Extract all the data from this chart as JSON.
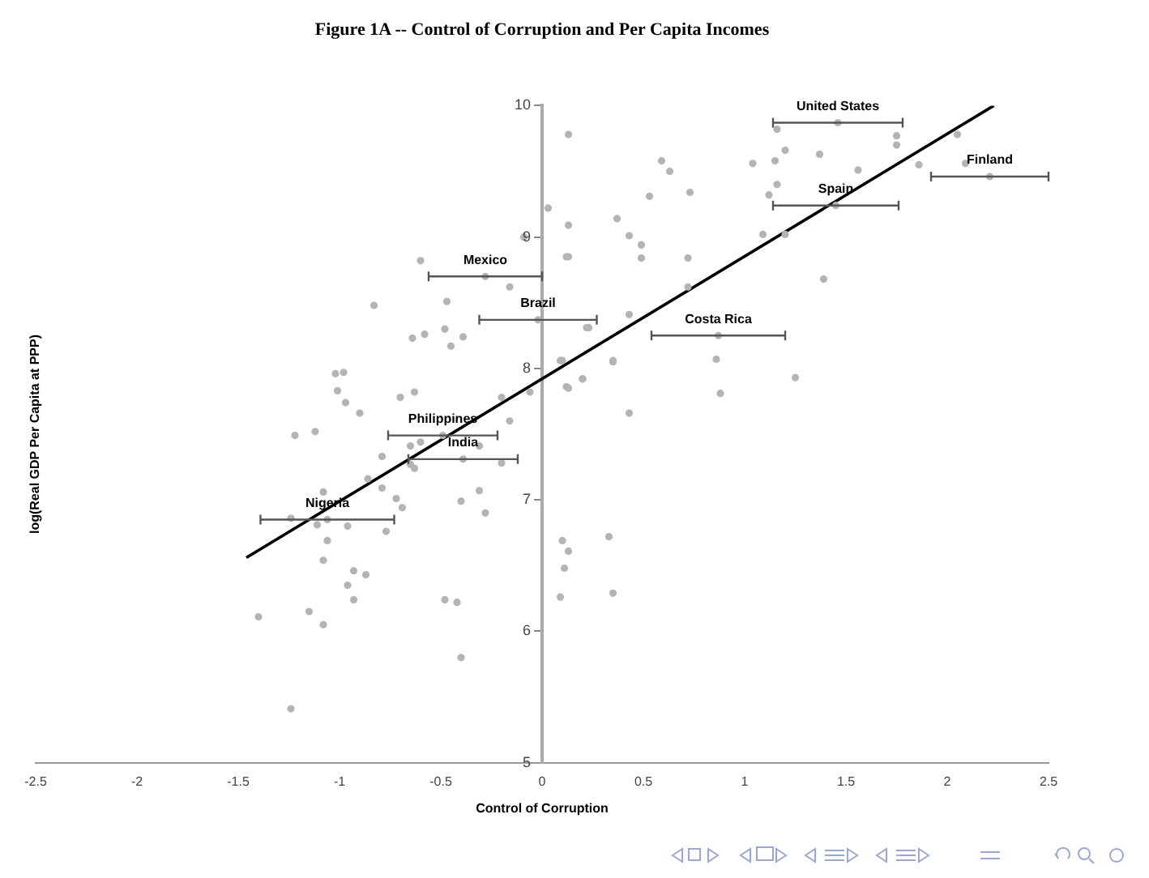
{
  "chart_data": {
    "type": "scatter",
    "title": "Figure 1A -- Control of Corruption and Per Capita Incomes",
    "xlabel": "Control of Corruption",
    "ylabel": "log(Real GDP Per Capita at PPP)",
    "xlim": [
      -2.5,
      2.5
    ],
    "xticks": [
      -2.5,
      -2,
      -1.5,
      -1,
      -0.5,
      0,
      0.5,
      1,
      1.5,
      2,
      2.5
    ],
    "ylim": [
      5,
      10
    ],
    "yticks": [
      5,
      6,
      7,
      8,
      9,
      10
    ],
    "grid": false,
    "legend": false,
    "marker": "circle",
    "series": [
      {
        "color": "#b4b4b4",
        "x": [
          -0.6,
          0.12,
          -0.09,
          -0.16,
          -0.83,
          -0.47,
          -0.64,
          -0.58,
          -0.48,
          -0.39,
          -0.45,
          0.22,
          -1.02,
          -0.98,
          -1.01,
          -0.97,
          -0.9,
          -0.63,
          -0.7,
          -1.22,
          -1.12,
          -0.16,
          -0.2,
          0.09,
          0.2,
          0.12,
          -0.06,
          0.35,
          -0.65,
          -0.6,
          -0.31,
          -0.79,
          -0.2,
          -0.65,
          -0.63,
          -0.86,
          -0.79,
          -1.08,
          -0.31,
          -0.72,
          -0.4,
          -0.28,
          -0.69,
          -1.24,
          -1.11,
          -0.96,
          -0.77,
          -1.06,
          -1.08,
          -0.93,
          -0.87,
          -0.96,
          -0.93,
          -0.48,
          -0.42,
          -1.4,
          -1.15,
          -1.08,
          -0.4,
          -1.24,
          0.1,
          0.13,
          0.11,
          0.09,
          0.33,
          0.35,
          0.13,
          0.03,
          0.13,
          0.13,
          0.59,
          0.63,
          0.53,
          0.73,
          0.37,
          0.43,
          0.49,
          0.49,
          0.72,
          0.72,
          0.43,
          0.23,
          0.1,
          0.35,
          0.2,
          0.13,
          0.43,
          0.88,
          0.86,
          1.25,
          1.39,
          1.09,
          1.2,
          1.12,
          1.16,
          1.04,
          1.15,
          1.2,
          1.37,
          1.56,
          1.86,
          1.75,
          1.75,
          2.05,
          2.09,
          1.16
        ],
        "values": [
          8.82,
          8.85,
          9.0,
          8.62,
          8.48,
          8.51,
          8.23,
          8.26,
          8.3,
          8.24,
          8.17,
          8.31,
          7.96,
          7.97,
          7.83,
          7.74,
          7.66,
          7.82,
          7.78,
          7.49,
          7.52,
          7.6,
          7.78,
          8.06,
          7.92,
          7.86,
          7.82,
          8.06,
          7.41,
          7.44,
          7.41,
          7.33,
          7.28,
          7.27,
          7.24,
          7.16,
          7.09,
          7.06,
          7.07,
          7.01,
          6.99,
          6.9,
          6.94,
          6.86,
          6.81,
          6.8,
          6.76,
          6.69,
          6.54,
          6.46,
          6.43,
          6.35,
          6.24,
          6.24,
          6.22,
          6.11,
          6.15,
          6.05,
          5.8,
          5.41,
          6.69,
          6.61,
          6.48,
          6.26,
          6.72,
          6.29,
          9.78,
          9.22,
          9.09,
          8.85,
          9.58,
          9.5,
          9.31,
          9.34,
          9.14,
          9.01,
          8.94,
          8.84,
          8.84,
          8.62,
          8.41,
          8.31,
          8.06,
          8.05,
          7.92,
          7.85,
          7.66,
          7.81,
          8.07,
          7.93,
          8.68,
          9.02,
          9.02,
          9.32,
          9.4,
          9.56,
          9.58,
          9.66,
          9.63,
          9.51,
          9.55,
          9.77,
          9.7,
          9.78,
          9.56,
          9.82
        ]
      },
      {
        "color": "#b4b4b4",
        "x": [
          1.46,
          2.21,
          1.45,
          -0.28,
          -0.02,
          0.87,
          -0.49,
          -0.39,
          -1.06
        ],
        "values": [
          9.87,
          9.46,
          9.24,
          8.7,
          8.37,
          8.25,
          7.49,
          7.31,
          6.85
        ],
        "xerrors": [
          0.32,
          0.29,
          0.31,
          0.28,
          0.29,
          0.33,
          0.27,
          0.27,
          0.33
        ]
      },
      {
        "type": "line",
        "color": "#000000",
        "marker": "none",
        "x": [
          -1.46,
          2.23
        ],
        "values": [
          6.56,
          10.0
        ]
      }
    ],
    "annotations": [
      {
        "text": "United States",
        "x": 1.46,
        "y": 9.87
      },
      {
        "text": "Finland",
        "x": 2.21,
        "y": 9.46
      },
      {
        "text": "Spain",
        "x": 1.45,
        "y": 9.24
      },
      {
        "text": "Mexico",
        "x": -0.28,
        "y": 8.7
      },
      {
        "text": "Brazil",
        "x": -0.02,
        "y": 8.37
      },
      {
        "text": "Costa Rica",
        "x": 0.87,
        "y": 8.25
      },
      {
        "text": "Philippines",
        "x": -0.49,
        "y": 7.49
      },
      {
        "text": "India",
        "x": -0.39,
        "y": 7.31
      },
      {
        "text": "Nigeria",
        "x": -1.06,
        "y": 6.85
      }
    ]
  }
}
